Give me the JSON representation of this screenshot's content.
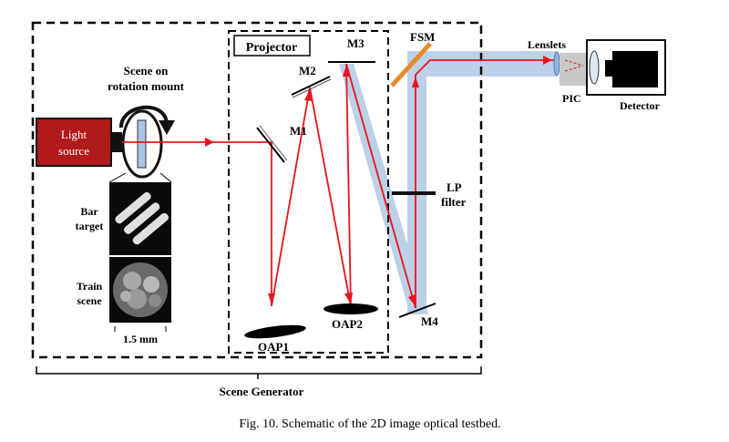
{
  "labels": {
    "projector": "Projector",
    "scene_mount_line1": "Scene on",
    "scene_mount_line2": "rotation mount",
    "light_source_line1": "Light",
    "light_source_line2": "source",
    "m1": "M1",
    "m2": "M2",
    "m3": "M3",
    "m4": "M4",
    "fsm": "FSM",
    "lenslets": "Lenslets",
    "pic": "PIC",
    "detector": "Detector",
    "lp_filter_line1": "LP",
    "lp_filter_line2": "filter",
    "bar_target_line1": "Bar",
    "bar_target_line2": "target",
    "train_scene_line1": "Train",
    "train_scene_line2": "scene",
    "scale": "1.5 mm",
    "oap1": "OAP1",
    "oap2": "OAP2",
    "scene_generator": "Scene Generator"
  },
  "caption": "Fig. 10. Schematic of the 2D image optical testbed.",
  "colors": {
    "beam": "#e8141c",
    "wide_beam": "#bcd0e8",
    "fsm": "#e8892c",
    "pic": "#c8c8c8",
    "lenslet": "#8fb8e0",
    "light_source": "#b01a1a"
  }
}
